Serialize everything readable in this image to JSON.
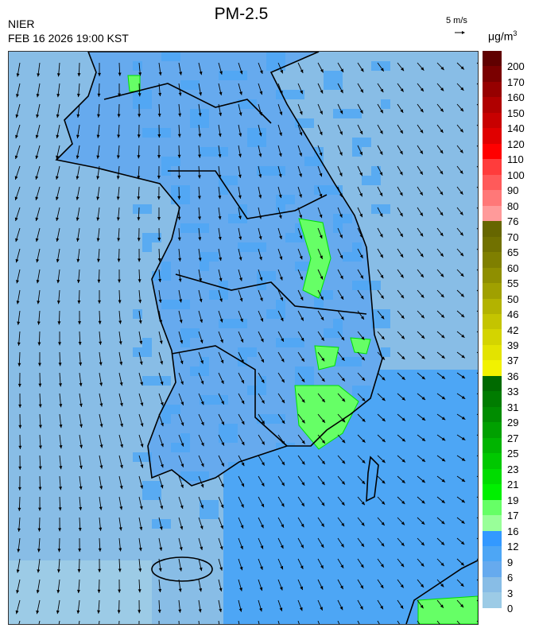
{
  "header": {
    "title": "PM-2.5",
    "organization": "NIER",
    "timestamp": "FEB 16 2026 19:00 KST",
    "wind_scale_label": "5 m/s",
    "unit": "μg/m",
    "unit_superscript": "3"
  },
  "legend": {
    "labels": [
      "200",
      "170",
      "160",
      "150",
      "140",
      "120",
      "110",
      "100",
      "90",
      "80",
      "76",
      "70",
      "65",
      "60",
      "55",
      "50",
      "46",
      "42",
      "39",
      "37",
      "36",
      "33",
      "31",
      "29",
      "27",
      "25",
      "23",
      "21",
      "19",
      "17",
      "16",
      "12",
      "9",
      "6",
      "3",
      "0"
    ],
    "colors": [
      "#600000",
      "#7a0000",
      "#960000",
      "#b00000",
      "#c80000",
      "#e00000",
      "#ff0000",
      "#ff3c3c",
      "#ff5a5a",
      "#ff7878",
      "#ff9a9a",
      "#666600",
      "#717100",
      "#7f7f00",
      "#8f8f00",
      "#a0a000",
      "#b3b300",
      "#c4c400",
      "#d4d400",
      "#e3e300",
      "#f2f200",
      "#006a00",
      "#007c00",
      "#008c00",
      "#00a000",
      "#00b400",
      "#00c800",
      "#00dc00",
      "#00f000",
      "#66ff66",
      "#99ff99",
      "#3399ff",
      "#4da6f5",
      "#66aaee",
      "#88bde6",
      "#9ccbe6"
    ]
  },
  "map": {
    "sea_color": "#88bde6",
    "land_color": "#66aaee",
    "high_color": "#4da6f5",
    "green_color": "#66ff66"
  }
}
